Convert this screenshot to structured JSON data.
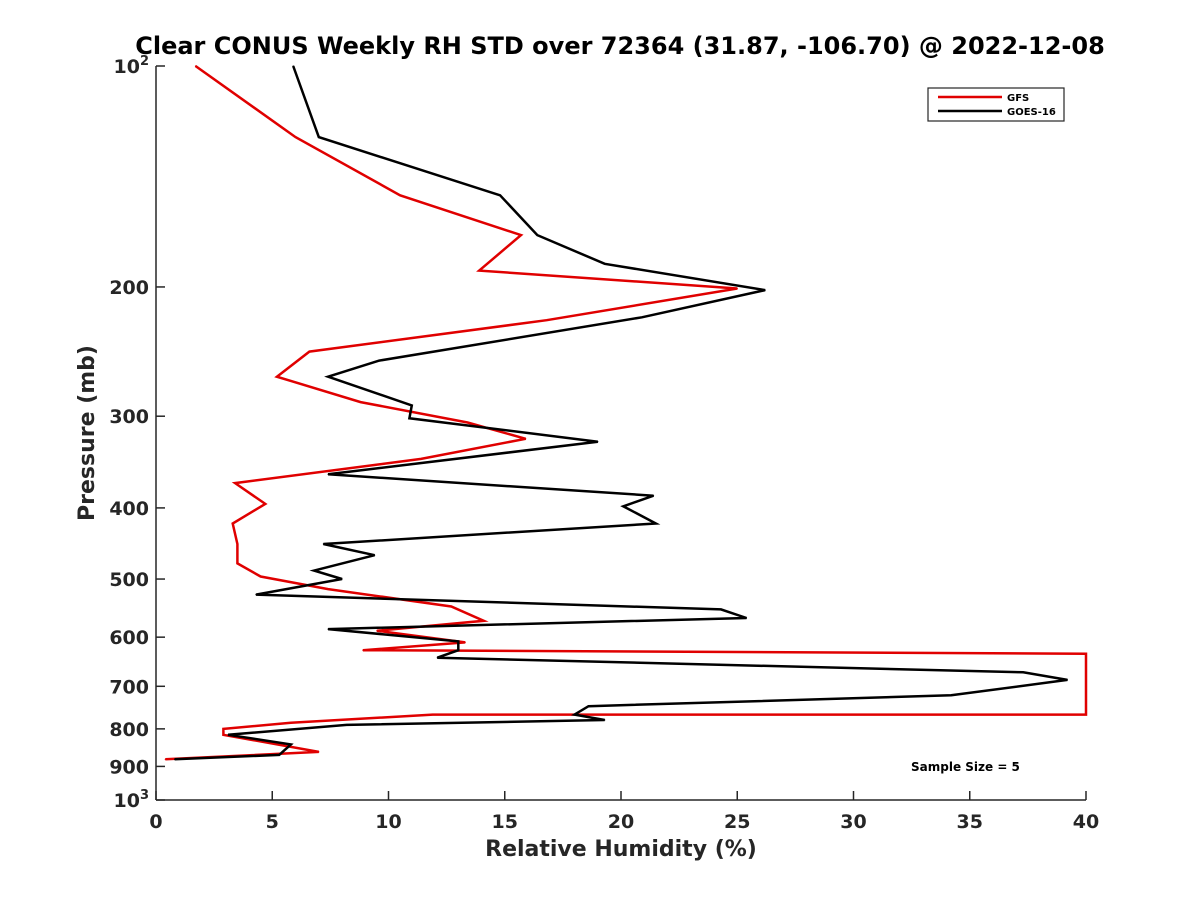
{
  "chart_data": {
    "type": "line",
    "title": "Clear CONUS Weekly RH STD over 72364 (31.87, -106.70) @ 2022-12-08",
    "xlabel": "Relative Humidity (%)",
    "ylabel": "Pressure (mb)",
    "xlim": [
      0,
      40
    ],
    "ylim": [
      100,
      1000
    ],
    "yscale": "log",
    "y_reversed": true,
    "x_ticks": [
      "0",
      "5",
      "10",
      "15",
      "20",
      "25",
      "30",
      "35",
      "40"
    ],
    "y_ticks": [
      {
        "value": 100,
        "base": "10",
        "exp": "2"
      },
      {
        "value": 200,
        "label": "200"
      },
      {
        "value": 300,
        "label": "300"
      },
      {
        "value": 400,
        "label": "400"
      },
      {
        "value": 500,
        "label": "500"
      },
      {
        "value": 600,
        "label": "600"
      },
      {
        "value": 700,
        "label": "700"
      },
      {
        "value": 800,
        "label": "800"
      },
      {
        "value": 900,
        "label": "900"
      },
      {
        "value": 1000,
        "base": "10",
        "exp": "3"
      }
    ],
    "legend_position": "top-right",
    "grid": false,
    "annotation": "Sample Size = 5",
    "series": [
      {
        "name": "GFS",
        "color": "#e00000",
        "points": [
          [
            1.7,
            100
          ],
          [
            6.0,
            125
          ],
          [
            10.5,
            150
          ],
          [
            15.7,
            170
          ],
          [
            13.9,
            190
          ],
          [
            25.0,
            201
          ],
          [
            16.8,
            222
          ],
          [
            6.6,
            245
          ],
          [
            5.2,
            265
          ],
          [
            8.8,
            287
          ],
          [
            13.4,
            306
          ],
          [
            15.9,
            322
          ],
          [
            11.4,
            343
          ],
          [
            3.4,
            370
          ],
          [
            4.7,
            395
          ],
          [
            3.3,
            420
          ],
          [
            3.5,
            448
          ],
          [
            3.5,
            476
          ],
          [
            4.5,
            496
          ],
          [
            7.4,
            516
          ],
          [
            12.7,
            545
          ],
          [
            14.1,
            570
          ],
          [
            9.5,
            588
          ],
          [
            13.3,
            610
          ],
          [
            8.9,
            625
          ],
          [
            40.0,
            632
          ],
          [
            40.0,
            765
          ],
          [
            11.9,
            765
          ],
          [
            5.8,
            785
          ],
          [
            2.9,
            800
          ],
          [
            2.9,
            815
          ],
          [
            7.0,
            860
          ],
          [
            0.4,
            880
          ]
        ]
      },
      {
        "name": "GOES-16",
        "color": "#000000",
        "points": [
          [
            5.9,
            100
          ],
          [
            7.0,
            125
          ],
          [
            14.8,
            150
          ],
          [
            16.4,
            170
          ],
          [
            19.3,
            186
          ],
          [
            26.2,
            202
          ],
          [
            20.9,
            220
          ],
          [
            9.6,
            252
          ],
          [
            7.4,
            265
          ],
          [
            11.0,
            290
          ],
          [
            10.9,
            302
          ],
          [
            19.0,
            325
          ],
          [
            7.4,
            360
          ],
          [
            21.4,
            385
          ],
          [
            20.1,
            398
          ],
          [
            21.5,
            420
          ],
          [
            7.2,
            448
          ],
          [
            9.4,
            464
          ],
          [
            6.8,
            487
          ],
          [
            8.0,
            500
          ],
          [
            4.3,
            525
          ],
          [
            24.3,
            550
          ],
          [
            25.4,
            565
          ],
          [
            7.4,
            585
          ],
          [
            13.0,
            608
          ],
          [
            13.0,
            625
          ],
          [
            12.1,
            640
          ],
          [
            37.3,
            670
          ],
          [
            39.2,
            686
          ],
          [
            34.2,
            720
          ],
          [
            18.6,
            745
          ],
          [
            18.0,
            765
          ],
          [
            19.3,
            778
          ],
          [
            8.2,
            790
          ],
          [
            3.1,
            815
          ],
          [
            5.8,
            840
          ],
          [
            5.3,
            868
          ],
          [
            0.8,
            880
          ]
        ]
      }
    ]
  }
}
